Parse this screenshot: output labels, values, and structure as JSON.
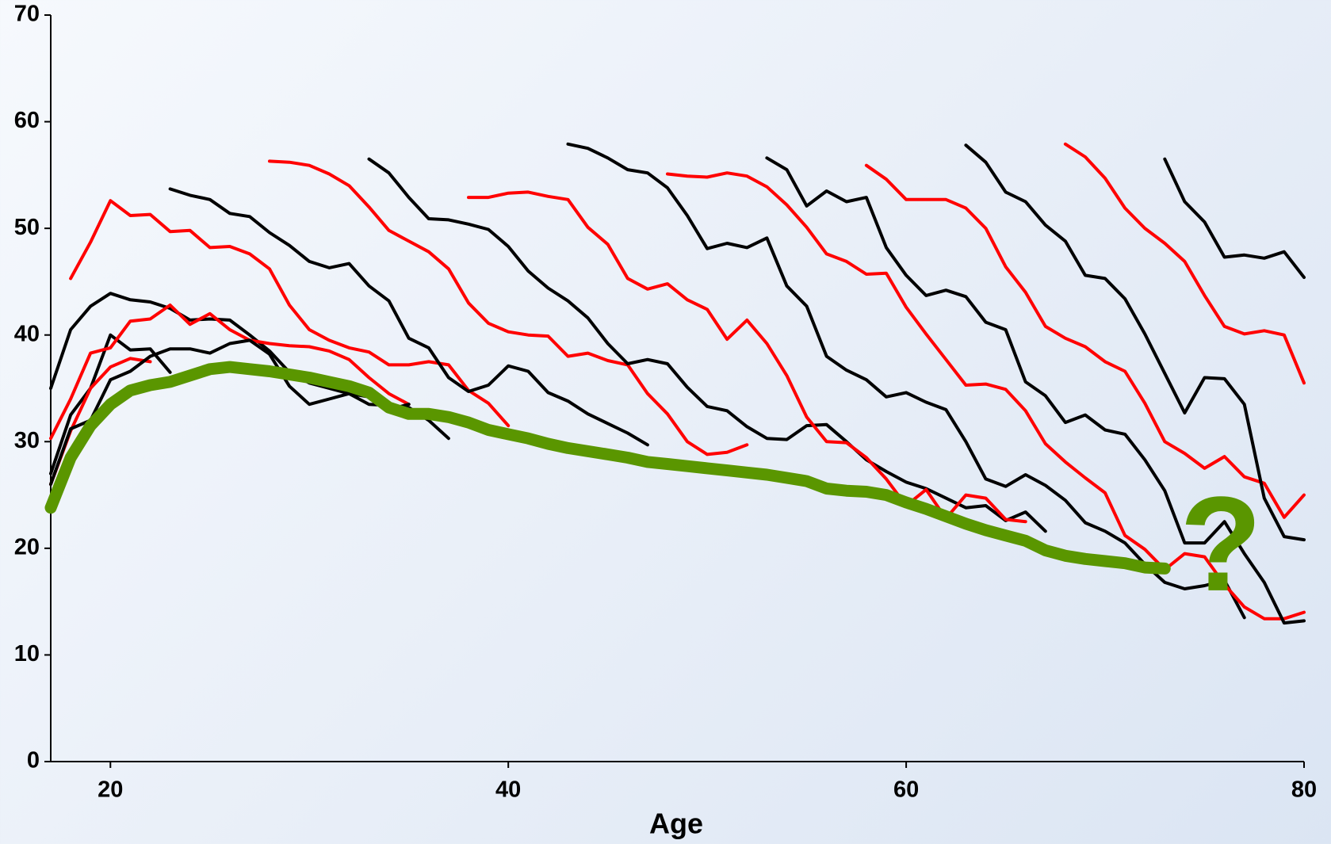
{
  "chart_data": {
    "type": "line",
    "x_label": "Age",
    "annotation": "?",
    "xlim": [
      17,
      80
    ],
    "xticks": [
      20,
      40,
      60,
      80
    ],
    "ylim": [
      0,
      70
    ],
    "yticks": [
      0,
      10,
      20,
      30,
      40,
      50,
      60,
      70
    ],
    "series": [
      {
        "color": "#000000",
        "linewidth": 4,
        "x": [
          17,
          18,
          19,
          20,
          21,
          22,
          23,
          24,
          25,
          26,
          27,
          28,
          29,
          30,
          31,
          32,
          33,
          34,
          35,
          36,
          37
        ],
        "values": [
          35,
          40.5,
          42.7,
          43.9,
          43.3,
          43.1,
          42.5,
          41.4,
          41.5,
          41.4,
          40,
          38.5,
          36.5,
          35.5,
          35,
          34.5,
          33.5,
          33.4,
          33.2,
          32,
          30.3
        ]
      },
      {
        "color": "#ff0000",
        "linewidth": 4,
        "x": [
          18,
          19,
          20,
          21,
          22,
          23,
          24,
          25,
          26,
          27,
          28,
          29,
          30,
          31,
          32,
          33,
          34,
          35,
          36,
          37,
          38,
          39,
          40
        ],
        "values": [
          45.3,
          48.7,
          52.6,
          51.2,
          51.3,
          49.7,
          49.8,
          48.2,
          48.3,
          47.6,
          46.2,
          42.8,
          40.5,
          39.5,
          38.8,
          38.4,
          37.2,
          37.2,
          37.5,
          37.2,
          34.8,
          33.6,
          31.5
        ]
      },
      {
        "color": "#000000",
        "linewidth": 4,
        "x": [
          17,
          18,
          19,
          20,
          21,
          22,
          23
        ],
        "values": [
          27,
          32.5,
          35,
          40,
          38.6,
          38.7,
          36.5
        ]
      },
      {
        "color": "#ff0000",
        "linewidth": 4,
        "x": [
          17,
          18,
          19,
          20,
          21,
          22,
          23,
          24,
          25,
          26,
          27,
          28,
          29,
          30,
          31,
          32,
          33,
          34,
          35
        ],
        "values": [
          30.3,
          34,
          38.3,
          38.8,
          41.3,
          41.5,
          42.8,
          41,
          42,
          40.5,
          39.5,
          39.2,
          39,
          38.9,
          38.5,
          37.7,
          36,
          34.5,
          33.5
        ]
      },
      {
        "color": "#ff0000",
        "linewidth": 4,
        "x": [
          17,
          18,
          19,
          20,
          21,
          22
        ],
        "values": [
          26,
          31,
          35,
          37,
          37.8,
          37.5
        ]
      },
      {
        "color": "#000000",
        "linewidth": 4,
        "x": [
          17,
          18,
          19,
          20,
          21,
          22,
          23,
          24,
          25,
          26,
          27,
          28,
          29,
          30,
          31,
          32,
          33,
          34,
          35
        ],
        "values": [
          26,
          31.2,
          32,
          35.8,
          36.6,
          38,
          38.7,
          38.7,
          38.3,
          39.2,
          39.5,
          38.2,
          35.2,
          33.5,
          34,
          34.5,
          34.2,
          33,
          33.5
        ]
      },
      {
        "color": "#000000",
        "linewidth": 4,
        "x": [
          23,
          24,
          25,
          26,
          27,
          28,
          29,
          30,
          31,
          32,
          33,
          34,
          35,
          36,
          37,
          38,
          39,
          40,
          41,
          42,
          43,
          44,
          45,
          46,
          47
        ],
        "values": [
          53.7,
          53.1,
          52.7,
          51.4,
          51.1,
          49.6,
          48.4,
          46.9,
          46.3,
          46.7,
          44.6,
          43.2,
          39.7,
          38.8,
          36,
          34.7,
          35.3,
          37.1,
          36.6,
          34.6,
          33.8,
          32.6,
          31.7,
          30.8,
          29.7
        ]
      },
      {
        "color": "#ff0000",
        "linewidth": 4,
        "x": [
          28,
          29,
          30,
          31,
          32,
          33,
          34,
          35,
          36,
          37,
          38,
          39,
          40,
          41,
          42,
          43,
          44,
          45,
          46,
          47,
          48,
          49,
          50,
          51,
          52
        ],
        "values": [
          56.3,
          56.2,
          55.9,
          55.1,
          54,
          52,
          49.8,
          48.8,
          47.8,
          46.2,
          43,
          41.1,
          40.3,
          40,
          39.9,
          38,
          38.3,
          37.6,
          37.2,
          34.5,
          32.6,
          30,
          28.8,
          29,
          29.7
        ]
      },
      {
        "color": "#000000",
        "linewidth": 4,
        "x": [
          33,
          34,
          35,
          36,
          37,
          38,
          39,
          40,
          41,
          42,
          43,
          44,
          45,
          46,
          47,
          48,
          49,
          50,
          51,
          52,
          53,
          54,
          55,
          56,
          57,
          58,
          59,
          60,
          61,
          62,
          63,
          64,
          65,
          66,
          67
        ],
        "values": [
          56.5,
          55.2,
          52.9,
          50.9,
          50.8,
          50.4,
          49.9,
          48.3,
          46,
          44.4,
          43.2,
          41.6,
          39.2,
          37.3,
          37.7,
          37.3,
          35.1,
          33.3,
          32.9,
          31.4,
          30.3,
          30.2,
          31.5,
          31.6,
          30,
          28.3,
          27.2,
          26.2,
          25.6,
          24.7,
          23.8,
          24,
          22.6,
          23.4,
          21.6
        ]
      },
      {
        "color": "#ff0000",
        "linewidth": 4,
        "x": [
          38,
          39,
          40,
          41,
          42,
          43,
          44,
          45,
          46,
          47,
          48,
          49,
          50,
          51,
          52,
          53,
          54,
          55,
          56,
          57,
          58,
          59,
          60,
          61,
          62,
          63,
          64,
          65,
          66
        ],
        "values": [
          52.9,
          52.9,
          53.3,
          53.4,
          53,
          52.7,
          50.1,
          48.5,
          45.3,
          44.3,
          44.8,
          43.3,
          42.4,
          39.6,
          41.4,
          39.2,
          36.2,
          32.3,
          30,
          29.9,
          28.5,
          26.5,
          24,
          25.5,
          22.8,
          25,
          24.7,
          22.7,
          22.5
        ]
      },
      {
        "color": "#000000",
        "linewidth": 4,
        "x": [
          43,
          44,
          45,
          46,
          47,
          48,
          49,
          50,
          51,
          52,
          53,
          54,
          55,
          56,
          57,
          58,
          59,
          60,
          61,
          62,
          63,
          64,
          65,
          66,
          67,
          68,
          69,
          70,
          71,
          72,
          73,
          74,
          75,
          76,
          77
        ],
        "values": [
          57.9,
          57.5,
          56.6,
          55.5,
          55.2,
          53.8,
          51.2,
          48.1,
          48.6,
          48.2,
          49.1,
          44.6,
          42.7,
          38,
          36.7,
          35.8,
          34.2,
          34.6,
          33.7,
          33,
          30,
          26.5,
          25.8,
          26.9,
          25.9,
          24.5,
          22.4,
          21.6,
          20.5,
          18.5,
          16.8,
          16.2,
          16.5,
          17,
          13.5
        ]
      },
      {
        "color": "#ff0000",
        "linewidth": 4,
        "x": [
          48,
          49,
          50,
          51,
          52,
          53,
          54,
          55,
          56,
          57,
          58,
          59,
          60,
          61,
          62,
          63,
          64,
          65,
          66,
          67,
          68,
          69,
          70,
          71,
          72,
          73,
          74,
          75,
          76,
          77,
          78,
          79,
          80
        ],
        "values": [
          55.1,
          54.9,
          54.8,
          55.2,
          54.9,
          53.9,
          52.2,
          50.1,
          47.6,
          46.9,
          45.7,
          45.8,
          42.6,
          40.1,
          37.7,
          35.3,
          35.4,
          34.9,
          32.9,
          29.8,
          28.1,
          26.6,
          25.2,
          21.2,
          19.9,
          18,
          19.5,
          19.2,
          16.6,
          14.5,
          13.4,
          13.4,
          14
        ]
      },
      {
        "color": "#000000",
        "linewidth": 4,
        "x": [
          53,
          54,
          55,
          56,
          57,
          58,
          59,
          60,
          61,
          62,
          63,
          64,
          65,
          66,
          67,
          68,
          69,
          70,
          71,
          72,
          73,
          74,
          75,
          76,
          77,
          78,
          79,
          80
        ],
        "values": [
          56.6,
          55.5,
          52.1,
          53.5,
          52.5,
          52.9,
          48.2,
          45.6,
          43.7,
          44.2,
          43.6,
          41.2,
          40.5,
          35.6,
          34.3,
          31.8,
          32.5,
          31.1,
          30.7,
          28.3,
          25.4,
          20.5,
          20.5,
          22.5,
          19.5,
          16.8,
          13,
          13.2
        ]
      },
      {
        "color": "#ff0000",
        "linewidth": 4,
        "x": [
          58,
          59,
          60,
          61,
          62,
          63,
          64,
          65,
          66,
          67,
          68,
          69,
          70,
          71,
          72,
          73,
          74,
          75,
          76,
          77,
          78,
          79,
          80
        ],
        "values": [
          55.9,
          54.6,
          52.7,
          52.7,
          52.7,
          51.9,
          50,
          46.4,
          44,
          40.8,
          39.7,
          38.9,
          37.5,
          36.6,
          33.6,
          30,
          28.9,
          27.5,
          28.6,
          26.7,
          26.1,
          22.9,
          25
        ]
      },
      {
        "color": "#000000",
        "linewidth": 4,
        "x": [
          63,
          64,
          65,
          66,
          67,
          68,
          69,
          70,
          71,
          72,
          73,
          74,
          75,
          76,
          77,
          78,
          79,
          80
        ],
        "values": [
          57.8,
          56.2,
          53.4,
          52.5,
          50.3,
          48.8,
          45.6,
          45.3,
          43.4,
          40.1,
          36.4,
          32.7,
          36,
          35.9,
          33.5,
          24.7,
          21.1,
          20.8
        ]
      },
      {
        "color": "#ff0000",
        "linewidth": 4,
        "x": [
          68,
          69,
          70,
          71,
          72,
          73,
          74,
          75,
          76,
          77,
          78,
          79,
          80
        ],
        "values": [
          57.9,
          56.7,
          54.7,
          51.9,
          50,
          48.6,
          46.9,
          43.7,
          40.8,
          40.1,
          40.4,
          40,
          35.5
        ]
      },
      {
        "color": "#000000",
        "linewidth": 4,
        "x": [
          73,
          74,
          75,
          76,
          77,
          78,
          79,
          80
        ],
        "values": [
          56.5,
          52.5,
          50.6,
          47.3,
          47.5,
          47.2,
          47.8,
          45.4
        ]
      },
      {
        "color": "#5a9600",
        "linewidth": 15,
        "x": [
          17,
          18,
          19,
          20,
          21,
          22,
          23,
          24,
          25,
          26,
          27,
          28,
          29,
          30,
          31,
          32,
          33,
          34,
          35,
          36,
          37,
          38,
          39,
          40,
          41,
          42,
          43,
          44,
          45,
          46,
          47,
          48,
          49,
          50,
          51,
          52,
          53,
          54,
          55,
          56,
          57,
          58,
          59,
          60,
          61,
          62,
          63,
          64,
          65,
          66,
          67,
          68,
          69,
          70,
          71,
          72,
          73
        ],
        "values": [
          23.8,
          28.5,
          31.5,
          33.5,
          34.8,
          35.3,
          35.6,
          36.2,
          36.8,
          37,
          36.8,
          36.6,
          36.3,
          36,
          35.6,
          35.2,
          34.6,
          33.2,
          32.6,
          32.6,
          32.3,
          31.8,
          31.1,
          30.7,
          30.3,
          29.8,
          29.4,
          29.1,
          28.8,
          28.5,
          28.1,
          27.9,
          27.7,
          27.5,
          27.3,
          27.1,
          26.9,
          26.6,
          26.3,
          25.6,
          25.4,
          25.3,
          25,
          24.3,
          23.7,
          23,
          22.3,
          21.7,
          21.2,
          20.7,
          19.8,
          19.3,
          19,
          18.8,
          18.6,
          18.2,
          18.1
        ]
      }
    ]
  }
}
